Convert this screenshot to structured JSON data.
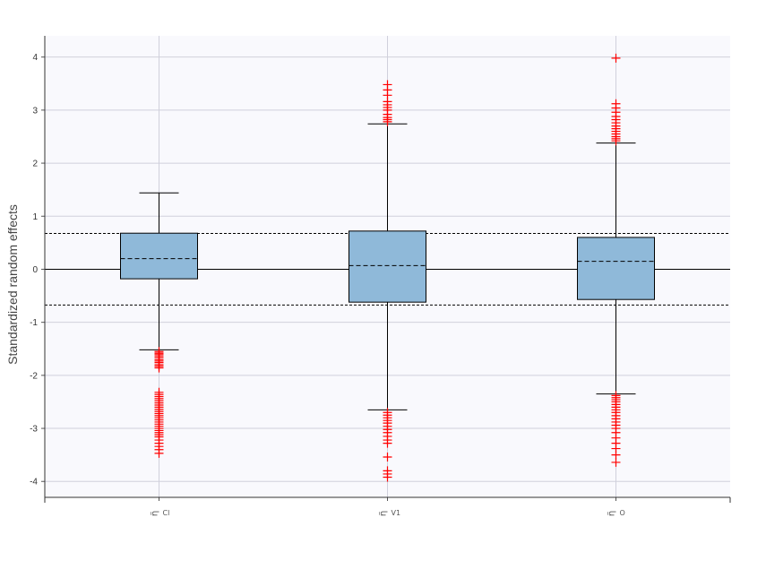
{
  "chart_data": {
    "type": "boxplot",
    "ylabel": "Standardized random effects",
    "ylim": [
      -4.3,
      4.4
    ],
    "yticks": [
      -4,
      -3,
      -2,
      -1,
      0,
      1,
      2,
      3,
      4
    ],
    "grid": true,
    "reference_lines": {
      "solid": 0,
      "dashed": [
        0.674,
        -0.674
      ]
    },
    "colors": {
      "box": "#8fb9d9",
      "outlier": "#ff0000",
      "plot_bg": "#f9f9fd",
      "grid": "#d0d0dc"
    },
    "categories": [
      {
        "label": "η̃",
        "sub": "Cl",
        "whisker_low": -1.52,
        "q1": -0.18,
        "mean": 0.2,
        "q3": 0.68,
        "whisker_high": 1.44,
        "outliers": [
          -1.55,
          -1.58,
          -1.6,
          -1.63,
          -1.66,
          -1.7,
          -1.73,
          -1.76,
          -1.8,
          -1.83,
          -1.86,
          -2.32,
          -2.36,
          -2.4,
          -2.44,
          -2.48,
          -2.52,
          -2.56,
          -2.6,
          -2.64,
          -2.68,
          -2.72,
          -2.76,
          -2.8,
          -2.84,
          -2.88,
          -2.92,
          -2.96,
          -3.0,
          -3.04,
          -3.08,
          -3.12,
          -3.16,
          -3.22,
          -3.28,
          -3.34,
          -3.4,
          -3.47
        ]
      },
      {
        "label": "η̃",
        "sub": "V1",
        "whisker_low": -2.65,
        "q1": -0.62,
        "mean": 0.07,
        "q3": 0.72,
        "whisker_high": 2.74,
        "outliers": [
          2.78,
          2.82,
          2.86,
          2.92,
          3.0,
          3.05,
          3.1,
          3.16,
          3.28,
          3.38,
          3.48,
          -2.7,
          -2.75,
          -2.8,
          -2.85,
          -2.9,
          -2.96,
          -3.02,
          -3.08,
          -3.15,
          -3.22,
          -3.28,
          -3.54,
          -3.8,
          -3.86,
          -3.92
        ]
      },
      {
        "label": "η̃",
        "sub": "O",
        "whisker_low": -2.35,
        "q1": -0.57,
        "mean": 0.15,
        "q3": 0.6,
        "whisker_high": 2.38,
        "outliers": [
          2.42,
          2.46,
          2.5,
          2.55,
          2.6,
          2.65,
          2.7,
          2.76,
          2.82,
          2.88,
          2.96,
          3.04,
          3.12,
          3.98,
          -2.38,
          -2.42,
          -2.46,
          -2.5,
          -2.55,
          -2.6,
          -2.65,
          -2.7,
          -2.76,
          -2.82,
          -2.88,
          -2.94,
          -3.0,
          -3.08,
          -3.18,
          -3.28,
          -3.38,
          -3.5,
          -3.64
        ]
      }
    ]
  }
}
